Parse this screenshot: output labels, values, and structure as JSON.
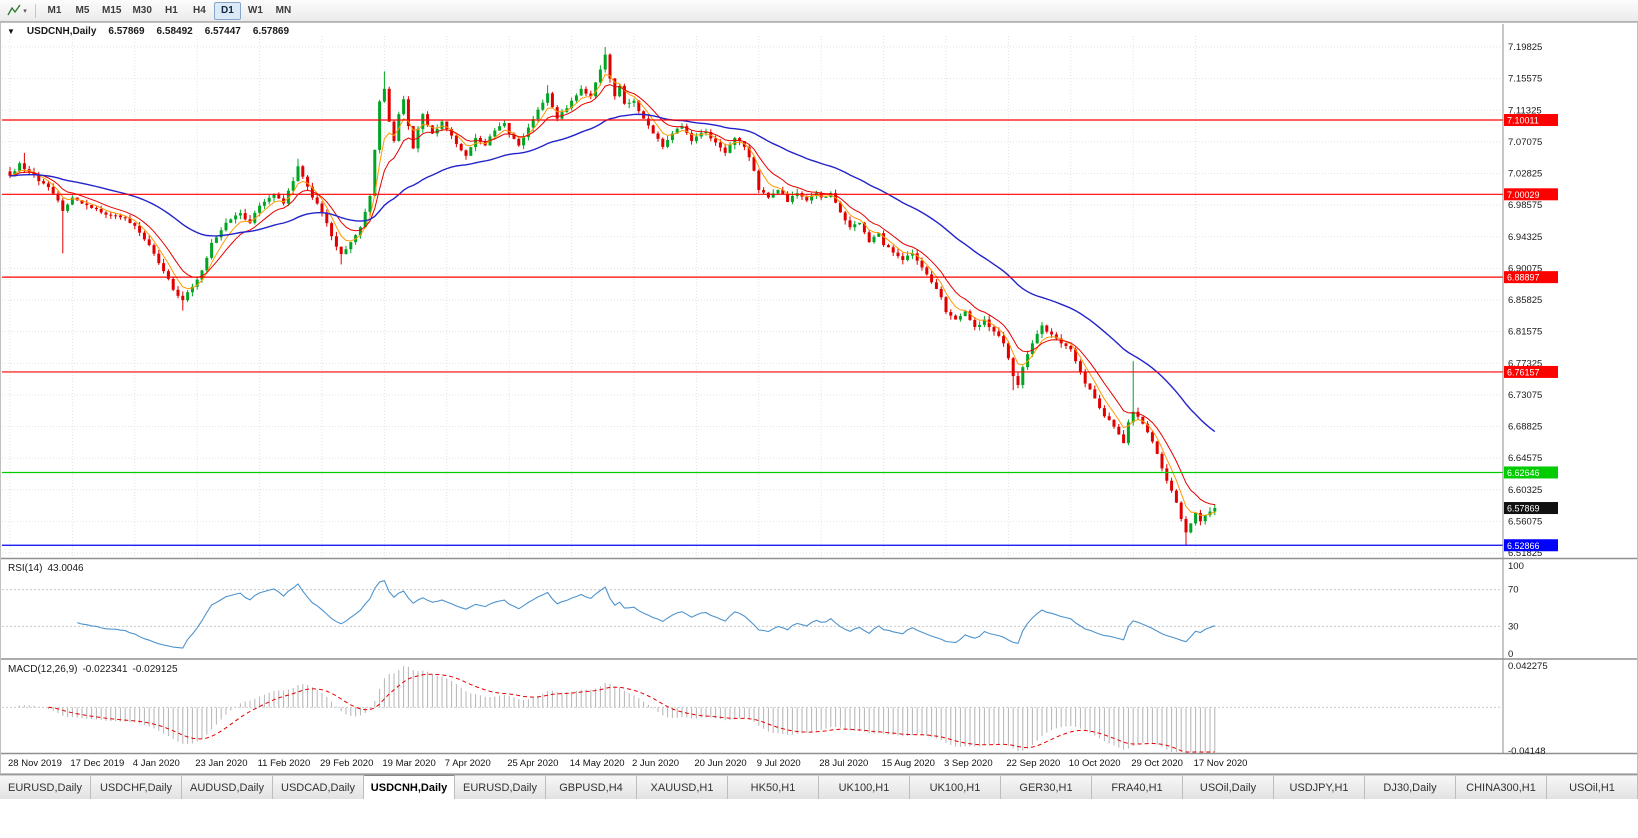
{
  "toolbar": {
    "chart_tool_icon": "chart-cursor",
    "dropdown_caret": "▾",
    "timeframes": [
      "M1",
      "M5",
      "M15",
      "M30",
      "H1",
      "H4",
      "D1",
      "W1",
      "MN"
    ],
    "active_timeframe": "D1"
  },
  "chart": {
    "collapse_icon": "▼",
    "title": "USDCNH,Daily",
    "ohlc": {
      "open": "6.57869",
      "high": "6.58492",
      "low": "6.57447",
      "close": "6.57869"
    }
  },
  "indicators": {
    "rsi": {
      "label": "RSI(14)",
      "value": "43.0046"
    },
    "macd": {
      "label": "MACD(12,26,9)",
      "main": "-0.022341",
      "signal": "-0.029125"
    }
  },
  "tabs": {
    "active_index": 4,
    "items": [
      "EURUSD,Daily",
      "USDCHF,Daily",
      "AUDUSD,Daily",
      "USDCAD,Daily",
      "USDCNH,Daily",
      "EURUSD,Daily",
      "GBPUSD,H4",
      "XAUUSD,H1",
      "HK50,H1",
      "UK100,H1",
      "UK100,H1",
      "GER30,H1",
      "FRA40,H1",
      "USOil,Daily",
      "USDJPY,H1",
      "DJ30,Daily",
      "CHINA300,H1",
      "USOil,H1"
    ]
  },
  "chart_data": {
    "type": "candlestick",
    "symbol": "USDCNH",
    "timeframe": "Daily",
    "seed": 7,
    "candles_count": 252,
    "noise": 0.0045,
    "wick": 0.006,
    "colors": {
      "bull": "#00a524",
      "bear": "#e00000",
      "grid": "#e2e2e2",
      "axis_text": "#1a1a1a",
      "hist": "#b4b4b4"
    },
    "y_tick_labels": [
      "7.19825",
      "7.15575",
      "7.11325",
      "7.07075",
      "7.02825",
      "6.98575",
      "6.94325",
      "6.90075",
      "6.85825",
      "6.81575",
      "6.77325",
      "6.73075",
      "6.68825",
      "6.64575",
      "6.60325",
      "6.56075",
      "6.51825"
    ],
    "x_tick_step": 13,
    "x_tick_labels": [
      "28 Nov 2019",
      "17 Dec 2019",
      "4 Jan 2020",
      "23 Jan 2020",
      "11 Feb 2020",
      "29 Feb 2020",
      "19 Mar 2020",
      "7 Apr 2020",
      "25 Apr 2020",
      "14 May 2020",
      "2 Jun 2020",
      "20 Jun 2020",
      "9 Jul 2020",
      "28 Jul 2020",
      "15 Aug 2020",
      "3 Sep 2020",
      "22 Sep 2020",
      "10 Oct 2020",
      "29 Oct 2020",
      "17 Nov 2020"
    ],
    "anchors": [
      [
        0,
        7.025
      ],
      [
        2,
        7.042
      ],
      [
        4,
        7.03
      ],
      [
        6,
        7.018
      ],
      [
        8,
        7.01
      ],
      [
        10,
        6.992
      ],
      [
        11,
        6.978
      ],
      [
        13,
        6.996
      ],
      [
        17,
        6.982
      ],
      [
        21,
        6.972
      ],
      [
        24,
        6.968
      ],
      [
        26,
        6.958
      ],
      [
        29,
        6.932
      ],
      [
        32,
        6.897
      ],
      [
        34,
        6.872
      ],
      [
        36,
        6.858
      ],
      [
        38,
        6.876
      ],
      [
        40,
        6.898
      ],
      [
        42,
        6.935
      ],
      [
        45,
        6.962
      ],
      [
        48,
        6.975
      ],
      [
        50,
        6.962
      ],
      [
        52,
        6.985
      ],
      [
        55,
        7.0
      ],
      [
        57,
        6.988
      ],
      [
        59,
        7.018
      ],
      [
        60,
        7.038
      ],
      [
        61,
        7.024
      ],
      [
        63,
        6.996
      ],
      [
        65,
        6.976
      ],
      [
        67,
        6.944
      ],
      [
        69,
        6.92
      ],
      [
        71,
        6.936
      ],
      [
        73,
        6.956
      ],
      [
        75,
        6.998
      ],
      [
        76,
        7.06
      ],
      [
        77,
        7.125
      ],
      [
        78,
        7.142
      ],
      [
        79,
        7.098
      ],
      [
        80,
        7.072
      ],
      [
        81,
        7.108
      ],
      [
        82,
        7.128
      ],
      [
        83,
        7.092
      ],
      [
        84,
        7.062
      ],
      [
        85,
        7.088
      ],
      [
        86,
        7.108
      ],
      [
        88,
        7.082
      ],
      [
        90,
        7.098
      ],
      [
        91,
        7.088
      ],
      [
        93,
        7.068
      ],
      [
        95,
        7.052
      ],
      [
        97,
        7.076
      ],
      [
        99,
        7.066
      ],
      [
        101,
        7.086
      ],
      [
        103,
        7.096
      ],
      [
        104,
        7.082
      ],
      [
        106,
        7.066
      ],
      [
        108,
        7.09
      ],
      [
        110,
        7.114
      ],
      [
        112,
        7.136
      ],
      [
        114,
        7.102
      ],
      [
        116,
        7.116
      ],
      [
        117,
        7.126
      ],
      [
        119,
        7.142
      ],
      [
        121,
        7.132
      ],
      [
        123,
        7.168
      ],
      [
        124,
        7.188
      ],
      [
        125,
        7.156
      ],
      [
        126,
        7.132
      ],
      [
        127,
        7.146
      ],
      [
        128,
        7.122
      ],
      [
        130,
        7.126
      ],
      [
        132,
        7.102
      ],
      [
        134,
        7.082
      ],
      [
        136,
        7.064
      ],
      [
        138,
        7.082
      ],
      [
        140,
        7.092
      ],
      [
        142,
        7.072
      ],
      [
        143,
        7.078
      ],
      [
        145,
        7.084
      ],
      [
        147,
        7.07
      ],
      [
        149,
        7.056
      ],
      [
        151,
        7.076
      ],
      [
        153,
        7.064
      ],
      [
        155,
        7.032
      ],
      [
        156,
        7.006
      ],
      [
        158,
        6.996
      ],
      [
        160,
        7.006
      ],
      [
        162,
        6.99
      ],
      [
        164,
        7.002
      ],
      [
        166,
        6.992
      ],
      [
        168,
        7.002
      ],
      [
        169,
        6.996
      ],
      [
        171,
        7.002
      ],
      [
        173,
        6.976
      ],
      [
        175,
        6.956
      ],
      [
        177,
        6.962
      ],
      [
        179,
        6.936
      ],
      [
        181,
        6.948
      ],
      [
        182,
        6.932
      ],
      [
        184,
        6.922
      ],
      [
        186,
        6.912
      ],
      [
        188,
        6.921
      ],
      [
        190,
        6.902
      ],
      [
        192,
        6.882
      ],
      [
        194,
        6.862
      ],
      [
        195,
        6.842
      ],
      [
        197,
        6.832
      ],
      [
        199,
        6.843
      ],
      [
        201,
        6.822
      ],
      [
        203,
        6.832
      ],
      [
        205,
        6.816
      ],
      [
        207,
        6.8
      ],
      [
        208,
        6.78
      ],
      [
        209,
        6.756
      ],
      [
        210,
        6.744
      ],
      [
        211,
        6.768
      ],
      [
        213,
        6.8
      ],
      [
        215,
        6.824
      ],
      [
        217,
        6.812
      ],
      [
        219,
        6.8
      ],
      [
        221,
        6.792
      ],
      [
        222,
        6.776
      ],
      [
        224,
        6.746
      ],
      [
        226,
        6.726
      ],
      [
        228,
        6.702
      ],
      [
        230,
        6.688
      ],
      [
        232,
        6.666
      ],
      [
        233,
        6.694
      ],
      [
        234,
        6.708
      ],
      [
        236,
        6.692
      ],
      [
        238,
        6.668
      ],
      [
        240,
        6.632
      ],
      [
        242,
        6.602
      ],
      [
        243,
        6.586
      ],
      [
        244,
        6.564
      ],
      [
        245,
        6.546
      ],
      [
        246,
        6.558
      ],
      [
        247,
        6.572
      ],
      [
        248,
        6.561
      ],
      [
        249,
        6.569
      ],
      [
        250,
        6.574
      ],
      [
        251,
        6.57869
      ]
    ],
    "wick_overrides": [
      {
        "i": 3,
        "high": 7.056
      },
      {
        "i": 11,
        "low": 6.921
      },
      {
        "i": 36,
        "low": 6.844
      },
      {
        "i": 60,
        "high": 7.048
      },
      {
        "i": 69,
        "low": 6.906
      },
      {
        "i": 78,
        "high": 7.1655
      },
      {
        "i": 112,
        "high": 7.147
      },
      {
        "i": 124,
        "high": 7.19825
      },
      {
        "i": 209,
        "low": 6.737
      },
      {
        "i": 234,
        "high": 6.776
      },
      {
        "i": 245,
        "low": 6.5287
      }
    ],
    "moving_averages": [
      {
        "period": 5,
        "color": "#ff9900",
        "width": 1
      },
      {
        "period": 10,
        "color": "#e60000",
        "width": 1
      },
      {
        "period": 42,
        "color": "#2323cc",
        "width": 1.4
      }
    ],
    "hlines": [
      {
        "price": 7.10011,
        "label": "7.10011",
        "color": "#ff0000"
      },
      {
        "price": 7.00029,
        "label": "7.00029",
        "color": "#ff0000"
      },
      {
        "price": 6.88897,
        "label": "6.88897",
        "color": "#ff0000"
      },
      {
        "price": 6.76157,
        "label": "6.76157",
        "color": "#ff0000"
      },
      {
        "price": 6.62646,
        "label": "6.62646",
        "color": "#00cc00"
      },
      {
        "price": 6.52866,
        "label": "6.52866",
        "color": "#0000ff"
      }
    ],
    "current_price": {
      "price": 6.57869,
      "label": "6.57869",
      "badge_color": "#111111"
    },
    "rsi": {
      "period": 14,
      "value_now": 43.0046,
      "color": "#4f94cd",
      "levels": [
        {
          "v": 100,
          "label": "100"
        },
        {
          "v": 70,
          "label": "70"
        },
        {
          "v": 30,
          "label": "30"
        },
        {
          "v": 0,
          "label": "0"
        }
      ]
    },
    "macd": {
      "fast": 12,
      "slow": 26,
      "signal_period": 9,
      "main_now": -0.022341,
      "signal_now": -0.029125,
      "signal_color": "#e60000",
      "axis": [
        {
          "v": 0.042275,
          "label": "0.042275"
        },
        {
          "v": -0.04148,
          "label": "-0.04148"
        }
      ]
    }
  }
}
